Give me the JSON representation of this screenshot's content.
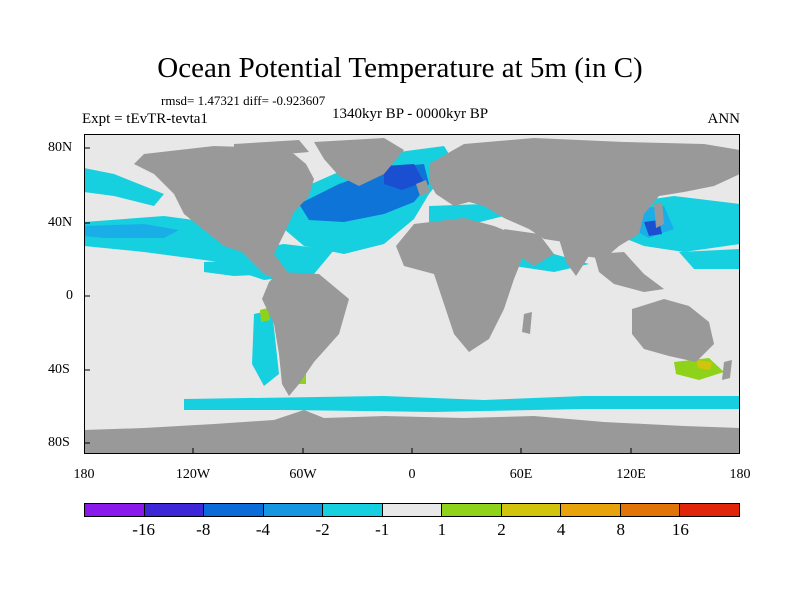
{
  "title": "Ocean Potential Temperature at 5m (in C)",
  "stats": "rmsd= 1.47321 diff= -0.923607",
  "subtitle": "1340kyr BP - 0000kyr BP",
  "left_label": "Expt = tEvTR-tevta1",
  "right_label": "ANN",
  "y_ticks": [
    "80N",
    "40N",
    "0",
    "40S",
    "80S"
  ],
  "x_ticks": [
    "180",
    "120W",
    "60W",
    "0",
    "60E",
    "120E",
    "180"
  ],
  "colorbar": {
    "colors": [
      "#8a1aec",
      "#3e27d7",
      "#0b6bd8",
      "#1497e0",
      "#17c9e0",
      "#17e0d9",
      "#e8e8e8",
      "#8fd21a",
      "#d2c30c",
      "#e8a20a",
      "#e17408",
      "#e0480b",
      "#e0250b"
    ],
    "labels": [
      "-16",
      "-8",
      "-4",
      "-2",
      "-1",
      "1",
      "2",
      "4",
      "8",
      "16"
    ]
  },
  "map_colors": {
    "land": "#999999",
    "ocean_neutral": "#e8e8e8",
    "cyan": "#17d0df",
    "light_blue": "#1aaee8",
    "blue": "#0f74d8",
    "deep_blue": "#1a4fd2",
    "green": "#8fd21a",
    "yellow": "#d2c30c"
  }
}
